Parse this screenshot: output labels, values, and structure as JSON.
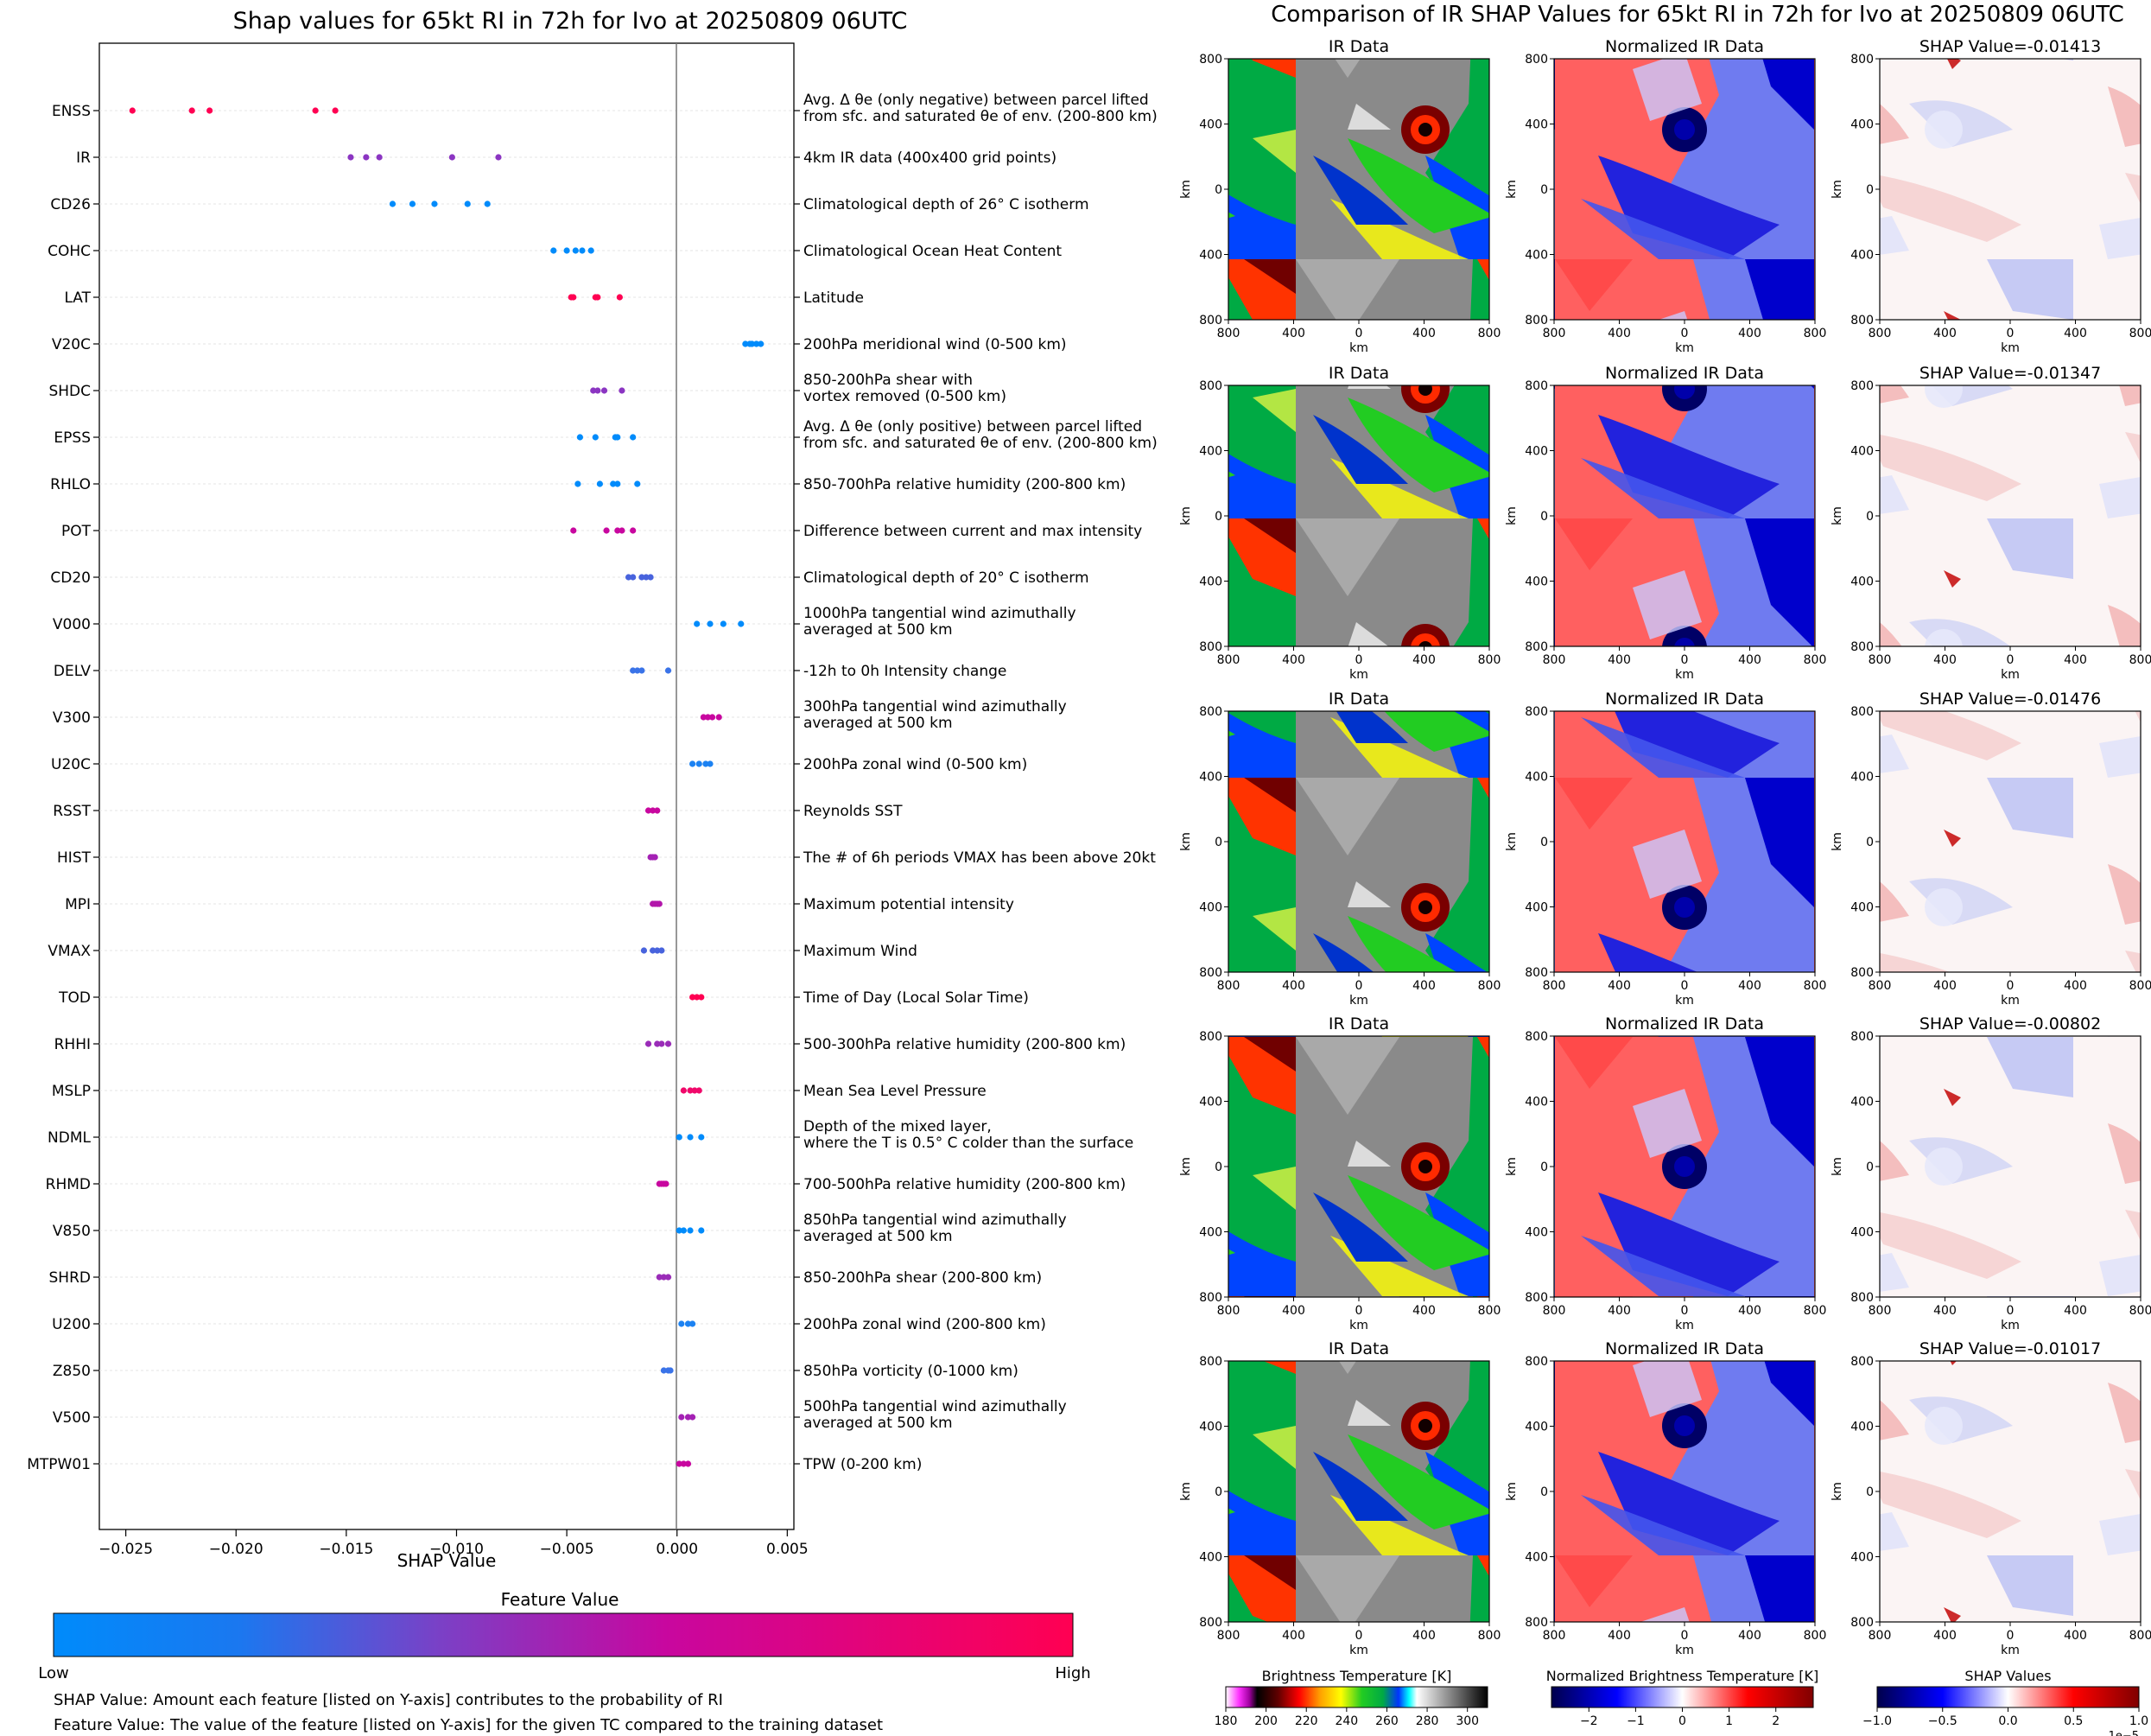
{
  "chart_data": [
    {
      "type": "scatter",
      "title": "Shap values for 65kt RI in 72h for Ivo at 20250809 06UTC",
      "xlabel": "SHAP Value",
      "ylabel": "",
      "xlim": [
        -0.0262,
        0.0053
      ],
      "xticks": [
        -0.025,
        -0.02,
        -0.015,
        -0.01,
        -0.005,
        0.0,
        0.005
      ],
      "xtick_labels": [
        "−0.025",
        "−0.020",
        "−0.015",
        "−0.010",
        "−0.005",
        "0.000",
        "0.005"
      ],
      "colorbar": {
        "title": "Feature Value",
        "low_label": "Low",
        "high_label": "High",
        "colors": [
          "#008bfb",
          "#7b40c6",
          "#c8079f",
          "#ff0052"
        ]
      },
      "notes": [
        "SHAP Value: Amount each feature [listed on Y-axis] contributes to the probability of RI",
        "Feature Value: The value of the feature [listed on Y-axis] for the given TC compared to the training dataset"
      ],
      "features": [
        {
          "name": "ENSS",
          "desc": [
            "Avg. Δ θe (only negative) between parcel lifted",
            "from sfc. and saturated θe of env. (200-800 km)"
          ],
          "values": [
            -0.0247,
            -0.022,
            -0.0212,
            -0.0164,
            -0.0155
          ],
          "color": "#ff0052"
        },
        {
          "name": "IR",
          "desc": [
            "4km IR data (400x400 grid points)"
          ],
          "values": [
            -0.0148,
            -0.0141,
            -0.0135,
            -0.0102,
            -0.0081
          ],
          "color": "#8b35c2"
        },
        {
          "name": "CD26",
          "desc": [
            "Climatological depth of 26° C isotherm"
          ],
          "values": [
            -0.0129,
            -0.012,
            -0.011,
            -0.0095,
            -0.0086
          ],
          "color": "#008bfb"
        },
        {
          "name": "COHC",
          "desc": [
            "Climatological Ocean Heat Content"
          ],
          "values": [
            -0.0056,
            -0.005,
            -0.0046,
            -0.0043,
            -0.0039
          ],
          "color": "#008bfb"
        },
        {
          "name": "LAT",
          "desc": [
            "Latitude"
          ],
          "values": [
            -0.0048,
            -0.0047,
            -0.0037,
            -0.0036,
            -0.0026
          ],
          "color": "#ff0052"
        },
        {
          "name": "V20C",
          "desc": [
            "200hPa meridional wind (0-500 km)"
          ],
          "values": [
            0.0031,
            0.0033,
            0.0034,
            0.0036,
            0.0038
          ],
          "color": "#008bfb"
        },
        {
          "name": "SHDC",
          "desc": [
            "850-200hPa shear with",
            "vortex removed (0-500 km)"
          ],
          "values": [
            -0.0038,
            -0.0036,
            -0.0033,
            -0.0025
          ],
          "color": "#8b35c2"
        },
        {
          "name": "EPSS",
          "desc": [
            "Avg. Δ θe (only positive) between parcel lifted",
            "from sfc. and saturated θe of env. (200-800 km)"
          ],
          "values": [
            -0.0044,
            -0.0037,
            -0.0028,
            -0.0027,
            -0.002
          ],
          "color": "#008bfb"
        },
        {
          "name": "RHLO",
          "desc": [
            "850-700hPa relative humidity (200-800 km)"
          ],
          "values": [
            -0.0045,
            -0.0035,
            -0.0029,
            -0.0027,
            -0.0018
          ],
          "color": "#008bfb"
        },
        {
          "name": "POT",
          "desc": [
            "Difference between current and max intensity"
          ],
          "values": [
            -0.0047,
            -0.0032,
            -0.0027,
            -0.0025,
            -0.002
          ],
          "color": "#c8079f"
        },
        {
          "name": "CD20",
          "desc": [
            "Climatological depth of 20° C isotherm"
          ],
          "values": [
            -0.0022,
            -0.002,
            -0.0016,
            -0.0014,
            -0.0012
          ],
          "color": "#4863dd"
        },
        {
          "name": "V000",
          "desc": [
            "1000hPa tangential wind azimuthally",
            "averaged at 500 km"
          ],
          "values": [
            0.0009,
            0.0015,
            0.0021,
            0.0029
          ],
          "color": "#008bfb"
        },
        {
          "name": "DELV",
          "desc": [
            "-12h to 0h Intensity change"
          ],
          "values": [
            -0.002,
            -0.0018,
            -0.0016,
            -0.0004
          ],
          "color": "#3a73e8"
        },
        {
          "name": "V300",
          "desc": [
            "300hPa tangential wind azimuthally",
            "averaged at 500 km"
          ],
          "values": [
            0.0012,
            0.0014,
            0.0016,
            0.0019
          ],
          "color": "#c8079f"
        },
        {
          "name": "U20C",
          "desc": [
            "200hPa zonal wind (0-500 km)"
          ],
          "values": [
            0.0007,
            0.001,
            0.0013,
            0.0015
          ],
          "color": "#1c82f2"
        },
        {
          "name": "RSST",
          "desc": [
            "Reynolds SST"
          ],
          "values": [
            -0.0013,
            -0.0011,
            -0.0009
          ],
          "color": "#c8079f"
        },
        {
          "name": "HIST",
          "desc": [
            "The # of 6h periods VMAX has been above 20kt"
          ],
          "values": [
            -0.0012,
            -0.0011,
            -0.001
          ],
          "color": "#a421b4"
        },
        {
          "name": "MPI",
          "desc": [
            "Maximum potential intensity"
          ],
          "values": [
            -0.0011,
            -0.001,
            -0.0009,
            -0.0008
          ],
          "color": "#b216aa"
        },
        {
          "name": "VMAX",
          "desc": [
            "Maximum Wind"
          ],
          "values": [
            -0.0015,
            -0.0011,
            -0.0009,
            -0.0007
          ],
          "color": "#4863dd"
        },
        {
          "name": "TOD",
          "desc": [
            "Time of Day (Local Solar Time)"
          ],
          "values": [
            0.0007,
            0.0009,
            0.0011
          ],
          "color": "#ff0052"
        },
        {
          "name": "RHHI",
          "desc": [
            "500-300hPa relative humidity (200-800 km)"
          ],
          "values": [
            -0.0013,
            -0.0009,
            -0.0007,
            -0.0004
          ],
          "color": "#9a2cb8"
        },
        {
          "name": "MSLP",
          "desc": [
            "Mean Sea Level Pressure"
          ],
          "values": [
            0.0003,
            0.0006,
            0.0008,
            0.001
          ],
          "color": "#f0086a"
        },
        {
          "name": "NDML",
          "desc": [
            "Depth of the mixed layer,",
            "where the T is 0.5° C colder than the surface"
          ],
          "values": [
            0.0001,
            0.0006,
            0.0011
          ],
          "color": "#008bfb"
        },
        {
          "name": "RHMD",
          "desc": [
            "700-500hPa relative humidity (200-800 km)"
          ],
          "values": [
            -0.0008,
            -0.0007,
            -0.0006,
            -0.0005
          ],
          "color": "#c8079f"
        },
        {
          "name": "V850",
          "desc": [
            "850hPa tangential wind azimuthally",
            "averaged at 500 km"
          ],
          "values": [
            0.0001,
            0.0003,
            0.0006,
            0.0011
          ],
          "color": "#008bfb"
        },
        {
          "name": "SHRD",
          "desc": [
            "850-200hPa shear (200-800 km)"
          ],
          "values": [
            -0.0008,
            -0.0006,
            -0.0004
          ],
          "color": "#9a2cb8"
        },
        {
          "name": "U200",
          "desc": [
            "200hPa zonal wind (200-800 km)"
          ],
          "values": [
            0.0002,
            0.0005,
            0.0007
          ],
          "color": "#1c82f2"
        },
        {
          "name": "Z850",
          "desc": [
            "850hPa vorticity (0-1000 km)"
          ],
          "values": [
            -0.0006,
            -0.0004,
            -0.0003
          ],
          "color": "#3a73e8"
        },
        {
          "name": "V500",
          "desc": [
            "500hPa tangential wind azimuthally",
            "averaged at 500 km"
          ],
          "values": [
            0.0002,
            0.0005,
            0.0007
          ],
          "color": "#a421b4"
        },
        {
          "name": "MTPW01",
          "desc": [
            "TPW (0-200 km)"
          ],
          "values": [
            0.0001,
            0.0003,
            0.0005
          ],
          "color": "#c8079f"
        }
      ]
    },
    {
      "type": "heatmap",
      "title": "Comparison of IR SHAP Values for 65kt RI in 72h for Ivo at 20250809 06UTC",
      "panel_titles": [
        "IR Data",
        "Normalized IR Data"
      ],
      "shap_values": [
        -0.01413,
        -0.01347,
        -0.01476,
        -0.00802,
        -0.01017
      ],
      "shap_title_prefix": "SHAP Value=",
      "xlabel": "km",
      "ylabel": "km",
      "xtick_labels": [
        "800",
        "400",
        "0",
        "400",
        "800"
      ],
      "ytick_labels": [
        "800",
        "400",
        "0",
        "400",
        "800"
      ],
      "colorbars": [
        {
          "title": "Brightness Temperature [K]",
          "ticks": [
            "180",
            "200",
            "220",
            "240",
            "260",
            "280",
            "300"
          ],
          "range": [
            180,
            310
          ]
        },
        {
          "title": "Normalized Brightness Temperature [K]",
          "ticks": [
            "−2",
            "−1",
            "0",
            "1",
            "2"
          ],
          "range": [
            -2.8,
            2.8
          ]
        },
        {
          "title": "SHAP Values",
          "ticks": [
            "−1.0",
            "−0.5",
            "0.0",
            "0.5",
            "1.0"
          ],
          "range": [
            -1.0,
            1.0
          ],
          "exponent": "1e−5"
        }
      ]
    }
  ]
}
